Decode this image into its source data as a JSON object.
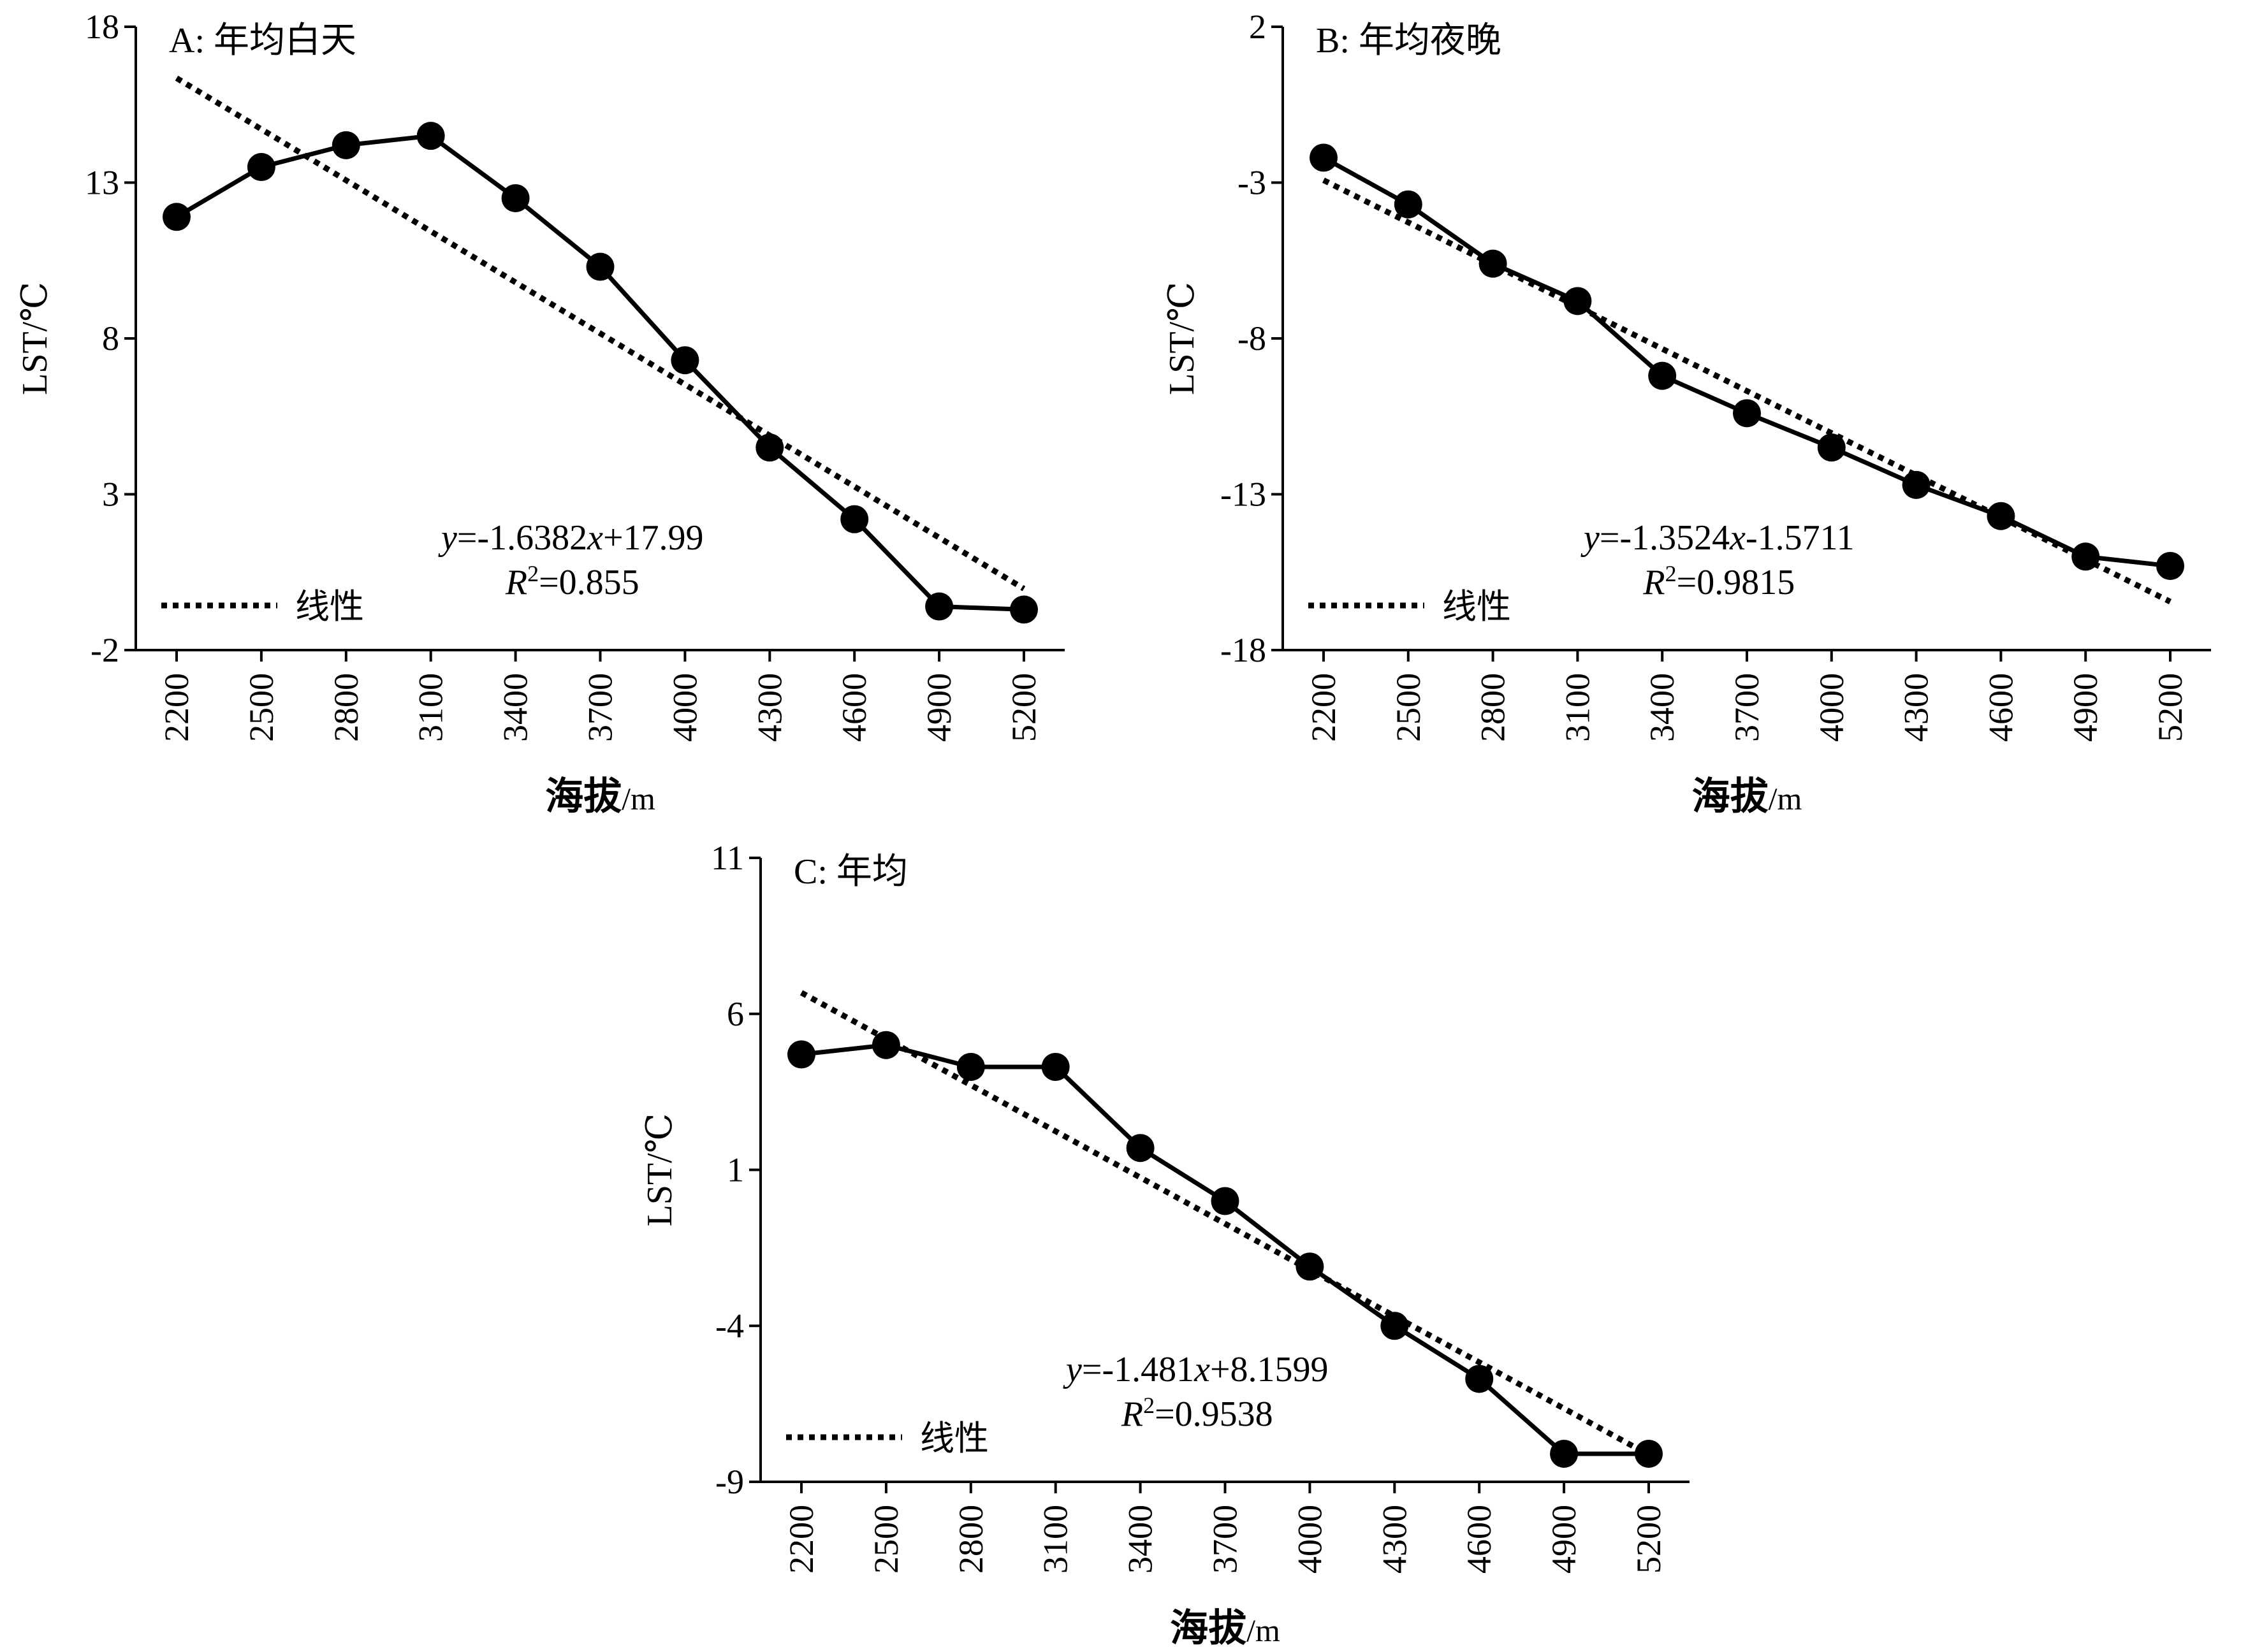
{
  "chart_data": [
    {
      "type": "line",
      "title": "A: 年均白天",
      "xlabel_main": "海拔",
      "xlabel_unit": "/m",
      "ylabel": "LST/℃",
      "ylim": [
        -2,
        18
      ],
      "yticks": [
        -2,
        3,
        8,
        13,
        18
      ],
      "categories": [
        2200,
        2500,
        2800,
        3100,
        3400,
        3700,
        4000,
        4300,
        4600,
        4900,
        5200
      ],
      "values": [
        11.9,
        13.5,
        14.2,
        14.5,
        12.5,
        10.3,
        7.3,
        4.5,
        2.2,
        -0.6,
        -0.7
      ],
      "trend": {
        "slope": -1.6382,
        "intercept": 17.99
      },
      "equation": {
        "y": "y",
        "eq": "=-1.6382",
        "x": "x",
        "rest": "+17.99"
      },
      "r2": {
        "R": "R",
        "sup": "2",
        "rest": "=0.855"
      },
      "legend": {
        "label": "线性",
        "position": "bottom-left"
      },
      "grid": false
    },
    {
      "type": "line",
      "title": "B: 年均夜晚",
      "xlabel_main": "海拔",
      "xlabel_unit": "/m",
      "ylabel": "LST/℃",
      "ylim": [
        -18,
        2
      ],
      "yticks": [
        -18,
        -13,
        -8,
        -3,
        2
      ],
      "categories": [
        2200,
        2500,
        2800,
        3100,
        3400,
        3700,
        4000,
        4300,
        4600,
        4900,
        5200
      ],
      "values": [
        -2.2,
        -3.7,
        -5.6,
        -6.8,
        -9.2,
        -10.4,
        -11.5,
        -12.7,
        -13.7,
        -15.0,
        -15.3
      ],
      "trend": {
        "slope": -1.3524,
        "intercept": -1.5711
      },
      "equation": {
        "y": "y",
        "eq": "=-1.3524",
        "x": "x",
        "rest": "-1.5711"
      },
      "r2": {
        "R": "R",
        "sup": "2",
        "rest": "=0.9815"
      },
      "legend": {
        "label": "线性",
        "position": "bottom-left"
      },
      "grid": false
    },
    {
      "type": "line",
      "title": "C: 年均",
      "xlabel_main": "海拔",
      "xlabel_unit": "/m",
      "ylabel": "LST/℃",
      "ylim": [
        -9,
        11
      ],
      "yticks": [
        -9,
        -4,
        1,
        6,
        11
      ],
      "categories": [
        2200,
        2500,
        2800,
        3100,
        3400,
        3700,
        4000,
        4300,
        4600,
        4900,
        5200
      ],
      "values": [
        4.7,
        5.0,
        4.3,
        4.3,
        1.7,
        0.0,
        -2.1,
        -4.0,
        -5.7,
        -8.1,
        -8.1
      ],
      "trend": {
        "slope": -1.481,
        "intercept": 8.1599
      },
      "equation": {
        "y": "y",
        "eq": "=-1.481",
        "x": "x",
        "rest": "+8.1599"
      },
      "r2": {
        "R": "R",
        "sup": "2",
        "rest": "=0.9538"
      },
      "legend": {
        "label": "线性",
        "position": "bottom-left"
      },
      "grid": false
    }
  ]
}
